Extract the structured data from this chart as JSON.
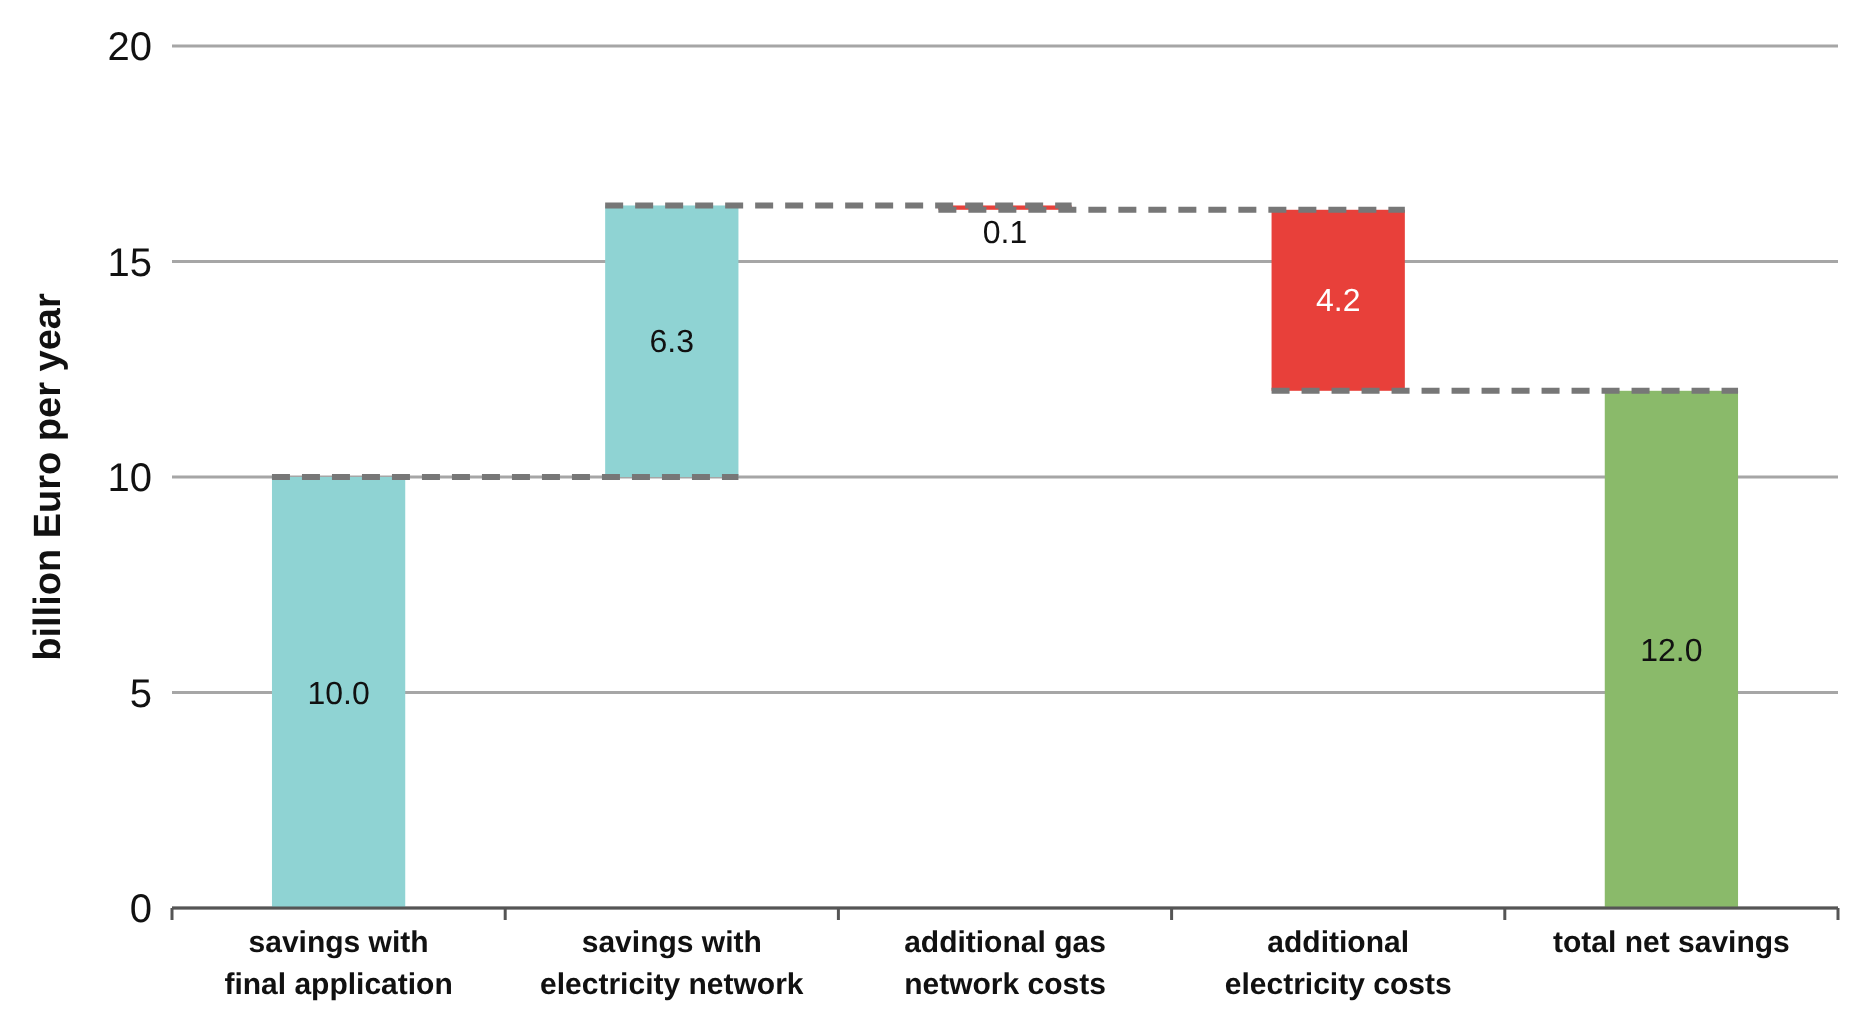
{
  "chart_data": {
    "type": "bar",
    "ylabel": "billion Euro per year",
    "categories": [
      "savings with final application",
      "savings with electricity network",
      "additional gas network costs",
      "additional electricity costs",
      "total net savings"
    ],
    "values": [
      10.0,
      6.3,
      -0.1,
      -4.2,
      12.0
    ],
    "base": [
      0,
      10.0,
      16.3,
      16.2,
      0
    ],
    "colors": [
      "#8fd3d3",
      "#8fd3d3",
      "#e8403a",
      "#e8403a",
      "#8aba6a"
    ],
    "value_labels": [
      "10.0",
      "6.3",
      "0.1",
      "4.2",
      "12.0"
    ],
    "ylim": [
      0,
      20
    ],
    "yticks": [
      0,
      5,
      10,
      15,
      20
    ],
    "grid": "y"
  }
}
